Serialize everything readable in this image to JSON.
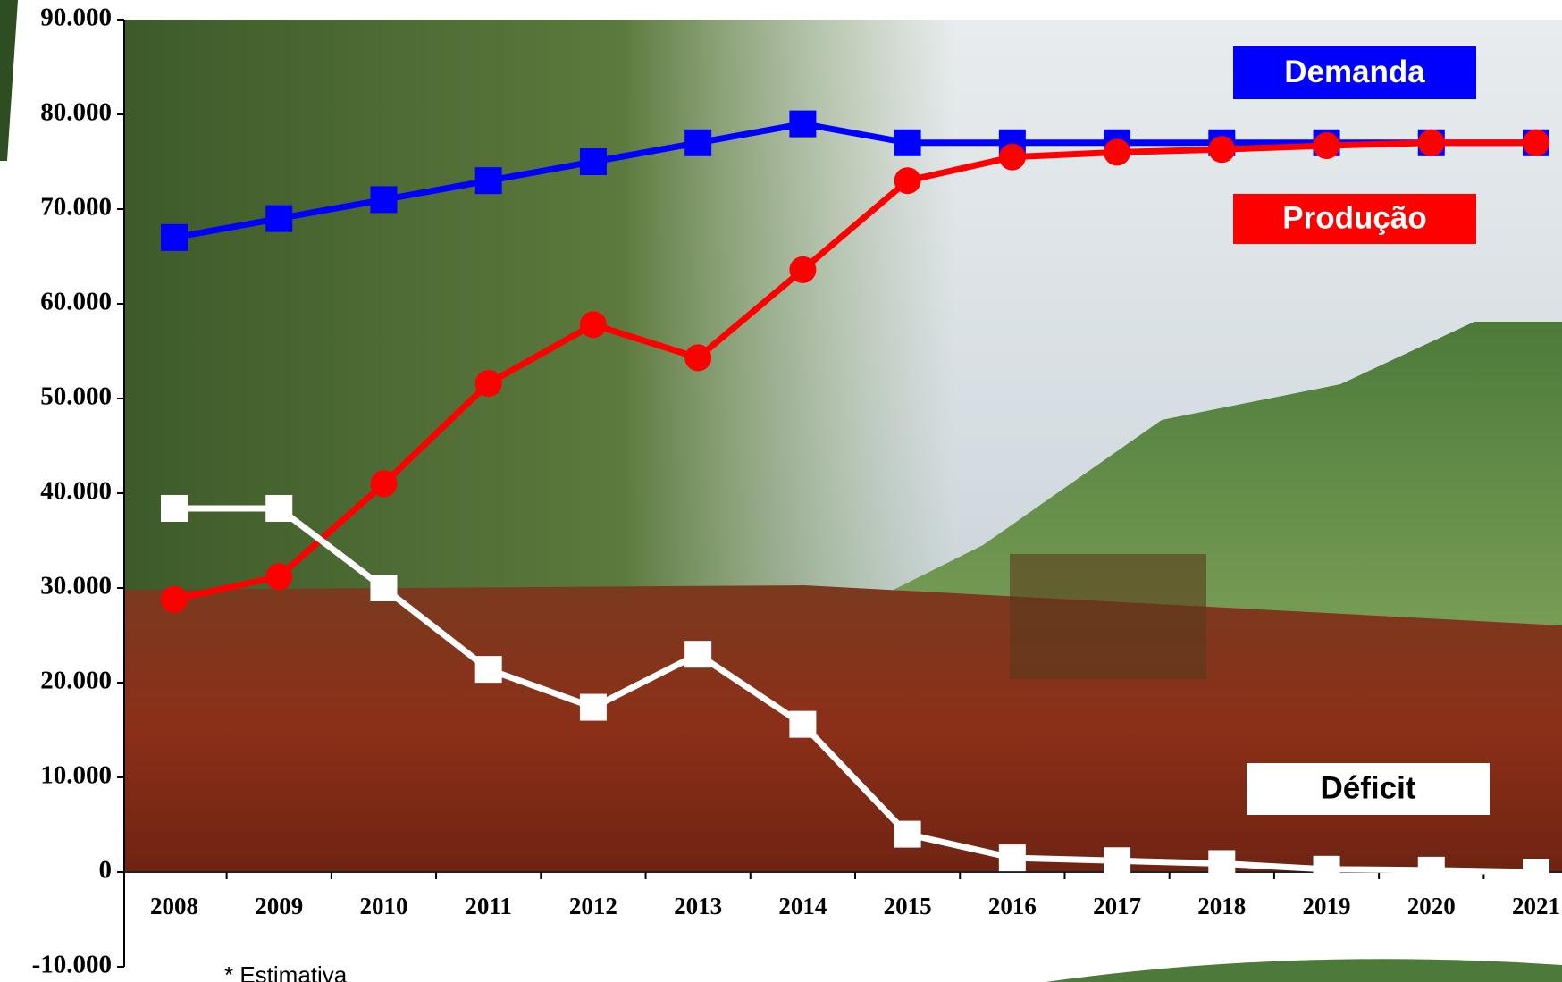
{
  "chart_data": {
    "type": "line",
    "categories": [
      "2008",
      "2009",
      "2010",
      "2011",
      "2012",
      "2013",
      "2014",
      "2015",
      "2016",
      "2017",
      "2018",
      "2019",
      "2020",
      "2021"
    ],
    "series": [
      {
        "name": "Demanda",
        "color": "#0000ff",
        "marker": "square",
        "label_color": "#ffffff",
        "values": [
          67000,
          69000,
          71000,
          73000,
          75000,
          77000,
          79000,
          77000,
          77000,
          77000,
          77000,
          77000,
          77000,
          77000
        ]
      },
      {
        "name": "Produção",
        "color": "#ff0000",
        "marker": "circle",
        "label_color": "#ffffff",
        "values": [
          28800,
          31200,
          41000,
          51600,
          57800,
          54300,
          63600,
          73000,
          75500,
          76000,
          76300,
          76700,
          77000,
          77000
        ]
      },
      {
        "name": "Déficit",
        "color": "#ffffff",
        "marker": "square",
        "label_color": "#000000",
        "values": [
          38400,
          38400,
          30000,
          21400,
          17400,
          23000,
          15600,
          4000,
          1500,
          1200,
          900,
          300,
          200,
          0
        ]
      }
    ],
    "ylim": [
      -10000,
      90000
    ],
    "yticks": [
      {
        "value": -10000,
        "label": "-10.000"
      },
      0,
      {
        "value": 10000,
        "label": "10.000"
      },
      {
        "value": 20000,
        "label": "20.000"
      },
      {
        "value": 30000,
        "label": "30.000"
      },
      {
        "value": 40000,
        "label": "40.000"
      },
      {
        "value": 50000,
        "label": "50.000"
      },
      {
        "value": 60000,
        "label": "60.000"
      },
      {
        "value": 70000,
        "label": "70.000"
      },
      {
        "value": 80000,
        "label": "80.000"
      },
      {
        "value": 90000,
        "label": "90.000"
      }
    ],
    "note": "* Estimativa"
  }
}
